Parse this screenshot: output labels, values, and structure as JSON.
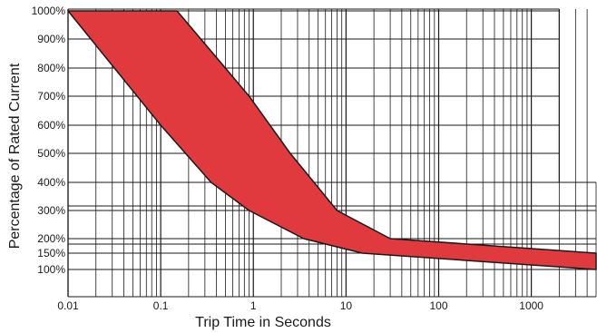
{
  "chart_data": {
    "type": "area",
    "title": "",
    "xlabel": "Trip Time in Seconds",
    "ylabel": "Percentage of Rated Current",
    "x_scale": "log",
    "xlim": [
      0.01,
      5000
    ],
    "x_ticks": [
      {
        "value": 0.01,
        "label": "0.01"
      },
      {
        "value": 0.1,
        "label": "0.1"
      },
      {
        "value": 1,
        "label": "1"
      },
      {
        "value": 10,
        "label": "10"
      },
      {
        "value": 100,
        "label": "100"
      },
      {
        "value": 1000,
        "label": "1000"
      }
    ],
    "y_ticks": [
      {
        "value": 100,
        "label": "100%"
      },
      {
        "value": 150,
        "label": "150%"
      },
      {
        "value": 200,
        "label": "200%"
      },
      {
        "value": 300,
        "label": "300%"
      },
      {
        "value": 400,
        "label": "400%"
      },
      {
        "value": 500,
        "label": "500%"
      },
      {
        "value": 600,
        "label": "600%"
      },
      {
        "value": 700,
        "label": "700%"
      },
      {
        "value": 800,
        "label": "800%"
      },
      {
        "value": 900,
        "label": "900%"
      },
      {
        "value": 1000,
        "label": "1000%"
      }
    ],
    "grid": true,
    "band": {
      "color": "#e03a3e",
      "upper": [
        {
          "x": 0.15,
          "y": 1000
        },
        {
          "x": 0.9,
          "y": 700
        },
        {
          "x": 2.5,
          "y": 500
        },
        {
          "x": 8,
          "y": 300
        },
        {
          "x": 30,
          "y": 200
        },
        {
          "x": 5000,
          "y": 150
        }
      ],
      "lower": [
        {
          "x": 0.01,
          "y": 1000
        },
        {
          "x": 0.1,
          "y": 600
        },
        {
          "x": 0.35,
          "y": 400
        },
        {
          "x": 0.9,
          "y": 300
        },
        {
          "x": 3.5,
          "y": 200
        },
        {
          "x": 15,
          "y": 150
        },
        {
          "x": 5000,
          "y": 100
        }
      ]
    }
  }
}
